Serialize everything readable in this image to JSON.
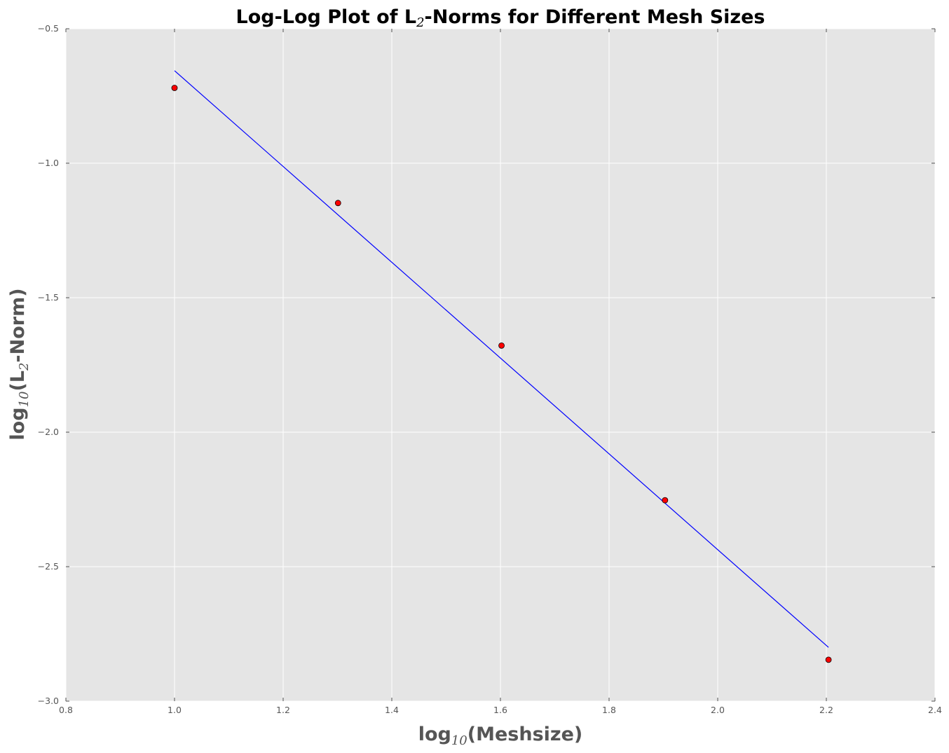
{
  "chart_data": {
    "type": "scatter",
    "title": {
      "prefix": "Log-Log Plot of L",
      "sub": "2",
      "suffix": "-Norms for Different Mesh Sizes"
    },
    "xlabel": {
      "prefix": "log",
      "sub": "10",
      "suffix": "(Meshsize)"
    },
    "ylabel": {
      "prefix": "log",
      "sub": "10",
      "mid": "(L",
      "sub2": "2",
      "suffix": "-Norm)"
    },
    "xlim": [
      0.8,
      2.4
    ],
    "ylim": [
      -3.0,
      -0.5
    ],
    "xticks": [
      0.8,
      1.0,
      1.2,
      1.4,
      1.6,
      1.8,
      2.0,
      2.2,
      2.4
    ],
    "xtick_labels": [
      "0.8",
      "1.0",
      "1.2",
      "1.4",
      "1.6",
      "1.8",
      "2.0",
      "2.2",
      "2.4"
    ],
    "yticks": [
      -0.5,
      -1.0,
      -1.5,
      -2.0,
      -2.5,
      -3.0
    ],
    "ytick_labels": [
      "−0.5",
      "−1.0",
      "−1.5",
      "−2.0",
      "−2.5",
      "−3.0"
    ],
    "grid": true,
    "series": [
      {
        "kind": "markers",
        "color": "#ff0000",
        "edge_color": "#000000",
        "x": [
          1.0,
          1.301,
          1.602,
          1.903,
          2.204
        ],
        "y": [
          -0.72,
          -1.148,
          -1.678,
          -2.253,
          -2.846
        ]
      },
      {
        "kind": "line",
        "color": "#0000ff",
        "x": [
          1.0,
          2.204
        ],
        "y": [
          -0.656,
          -2.8
        ]
      }
    ],
    "background_color": "#e5e5e5",
    "grid_color": "#ffffff"
  }
}
